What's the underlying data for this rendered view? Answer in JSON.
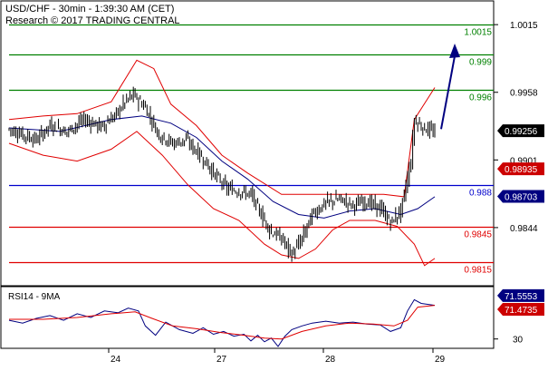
{
  "header": {
    "title": "USD/CHF - 30min - 1:39:30 AM (CET)",
    "research": "Research © 2017 TRADING CENTRAL"
  },
  "rsi_label": "RSI14 - 9MA",
  "chart_data": [
    {
      "type": "candlestick",
      "title": "USD/CHF - 30min - 1:39:30 AM (CET)",
      "ylim": [
        0.9795,
        1.0035
      ],
      "y_ticks": [
        {
          "value": 1.0015,
          "label": "1.0015"
        },
        {
          "value": 0.9958,
          "label": "0.9958"
        },
        {
          "value": 0.9901,
          "label": "0.9901"
        },
        {
          "value": 0.9844,
          "label": "0.9844"
        }
      ],
      "x_labels": [
        "24",
        "27",
        "28",
        "29"
      ],
      "current_price": {
        "value": 0.99256,
        "label": "0.99256",
        "color": "#000000"
      },
      "price_markers": [
        {
          "value": 0.98935,
          "label": "0.98935",
          "color": "#cc0000"
        },
        {
          "value": 0.98703,
          "label": "0.98703",
          "color": "#000080"
        }
      ],
      "levels": [
        {
          "value": 1.0015,
          "label": "1.0015",
          "color": "#008000"
        },
        {
          "value": 0.999,
          "label": "0.999",
          "color": "#008000"
        },
        {
          "value": 0.996,
          "label": "0.996",
          "color": "#008000"
        },
        {
          "value": 0.988,
          "label": "0.988",
          "color": "#0000cc"
        },
        {
          "value": 0.9845,
          "label": "0.9845",
          "color": "#e00000"
        },
        {
          "value": 0.9815,
          "label": "0.9815",
          "color": "#e00000"
        }
      ],
      "forecast_arrow": {
        "from": 0.9927,
        "to": 0.9993,
        "color": "#000080"
      },
      "price_keypoints": [
        [
          0,
          0.9927
        ],
        [
          8,
          0.9922
        ],
        [
          16,
          0.9918
        ],
        [
          24,
          0.993
        ],
        [
          34,
          0.9925
        ],
        [
          44,
          0.9935
        ],
        [
          54,
          0.9929
        ],
        [
          62,
          0.9938
        ],
        [
          68,
          0.995
        ],
        [
          73,
          0.9956
        ],
        [
          80,
          0.9945
        ],
        [
          88,
          0.9922
        ],
        [
          96,
          0.9915
        ],
        [
          104,
          0.9918
        ],
        [
          112,
          0.9905
        ],
        [
          120,
          0.989
        ],
        [
          128,
          0.9877
        ],
        [
          136,
          0.9874
        ],
        [
          142,
          0.9872
        ],
        [
          148,
          0.9855
        ],
        [
          154,
          0.984
        ],
        [
          160,
          0.9835
        ],
        [
          166,
          0.9821
        ],
        [
          172,
          0.9835
        ],
        [
          178,
          0.9855
        ],
        [
          186,
          0.9865
        ],
        [
          194,
          0.9868
        ],
        [
          202,
          0.9863
        ],
        [
          210,
          0.9866
        ],
        [
          218,
          0.986
        ],
        [
          224,
          0.9848
        ],
        [
          230,
          0.9858
        ],
        [
          236,
          0.99
        ],
        [
          238,
          0.9935
        ],
        [
          242,
          0.9929
        ],
        [
          250,
          0.9924
        ]
      ],
      "series": [
        {
          "name": "upper band",
          "color": "#e00000",
          "points": [
            [
              0,
              0.9935
            ],
            [
              20,
              0.9938
            ],
            [
              40,
              0.994
            ],
            [
              60,
              0.995
            ],
            [
              75,
              0.9985
            ],
            [
              85,
              0.9978
            ],
            [
              95,
              0.9948
            ],
            [
              110,
              0.993
            ],
            [
              125,
              0.9905
            ],
            [
              140,
              0.989
            ],
            [
              160,
              0.9872
            ],
            [
              180,
              0.9872
            ],
            [
              200,
              0.9872
            ],
            [
              220,
              0.9872
            ],
            [
              232,
              0.987
            ],
            [
              238,
              0.9935
            ],
            [
              250,
              0.9962
            ]
          ]
        },
        {
          "name": "lower band",
          "color": "#e00000",
          "points": [
            [
              0,
              0.9915
            ],
            [
              20,
              0.9905
            ],
            [
              40,
              0.99
            ],
            [
              60,
              0.991
            ],
            [
              75,
              0.9925
            ],
            [
              90,
              0.9905
            ],
            [
              105,
              0.988
            ],
            [
              120,
              0.986
            ],
            [
              135,
              0.985
            ],
            [
              150,
              0.983
            ],
            [
              160,
              0.9821
            ],
            [
              170,
              0.9818
            ],
            [
              180,
              0.9826
            ],
            [
              190,
              0.9842
            ],
            [
              200,
              0.985
            ],
            [
              215,
              0.985
            ],
            [
              228,
              0.9845
            ],
            [
              238,
              0.983
            ],
            [
              244,
              0.9812
            ],
            [
              250,
              0.9818
            ]
          ]
        },
        {
          "name": "moving average",
          "color": "#000080",
          "points": [
            [
              0,
              0.9928
            ],
            [
              30,
              0.9925
            ],
            [
              60,
              0.9935
            ],
            [
              78,
              0.9938
            ],
            [
              95,
              0.9932
            ],
            [
              110,
              0.992
            ],
            [
              125,
              0.99
            ],
            [
              140,
              0.9885
            ],
            [
              155,
              0.9866
            ],
            [
              170,
              0.9855
            ],
            [
              185,
              0.9852
            ],
            [
              200,
              0.9858
            ],
            [
              215,
              0.986
            ],
            [
              230,
              0.9855
            ],
            [
              240,
              0.986
            ],
            [
              250,
              0.987
            ]
          ]
        }
      ]
    },
    {
      "type": "line",
      "title": "RSI14 - 9MA",
      "ylim": [
        20,
        85
      ],
      "y_ticks": [
        {
          "value": 30,
          "label": "30"
        }
      ],
      "markers": [
        {
          "value": 71.5553,
          "label": "71.5553",
          "color": "#000080"
        },
        {
          "value": 71.4735,
          "label": "71.4735",
          "color": "#cc0000"
        }
      ],
      "series": [
        {
          "name": "RSI14",
          "color": "#000080",
          "points": [
            [
              0,
              50
            ],
            [
              8,
              47
            ],
            [
              16,
              52
            ],
            [
              24,
              55
            ],
            [
              32,
              50
            ],
            [
              40,
              57
            ],
            [
              48,
              53
            ],
            [
              56,
              60
            ],
            [
              64,
              58
            ],
            [
              70,
              63
            ],
            [
              76,
              60
            ],
            [
              80,
              44
            ],
            [
              86,
              34
            ],
            [
              92,
              48
            ],
            [
              100,
              40
            ],
            [
              108,
              36
            ],
            [
              114,
              42
            ],
            [
              120,
              35
            ],
            [
              126,
              38
            ],
            [
              132,
              33
            ],
            [
              138,
              35
            ],
            [
              142,
              28
            ],
            [
              146,
              34
            ],
            [
              150,
              27
            ],
            [
              154,
              31
            ],
            [
              158,
              22
            ],
            [
              162,
              33
            ],
            [
              166,
              40
            ],
            [
              172,
              44
            ],
            [
              178,
              47
            ],
            [
              186,
              49
            ],
            [
              194,
              47
            ],
            [
              202,
              48
            ],
            [
              210,
              46
            ],
            [
              218,
              45
            ],
            [
              224,
              38
            ],
            [
              230,
              42
            ],
            [
              234,
              60
            ],
            [
              238,
              72
            ],
            [
              242,
              68
            ],
            [
              250,
              66
            ]
          ]
        },
        {
          "name": "9MA",
          "color": "#e00000",
          "points": [
            [
              0,
              51
            ],
            [
              20,
              51
            ],
            [
              40,
              53
            ],
            [
              60,
              57
            ],
            [
              74,
              59
            ],
            [
              84,
              52
            ],
            [
              96,
              44
            ],
            [
              110,
              41
            ],
            [
              124,
              37
            ],
            [
              138,
              34
            ],
            [
              150,
              31
            ],
            [
              160,
              30
            ],
            [
              172,
              38
            ],
            [
              186,
              44
            ],
            [
              200,
              47
            ],
            [
              214,
              46
            ],
            [
              226,
              44
            ],
            [
              234,
              50
            ],
            [
              240,
              64
            ],
            [
              250,
              66
            ]
          ]
        }
      ]
    }
  ]
}
